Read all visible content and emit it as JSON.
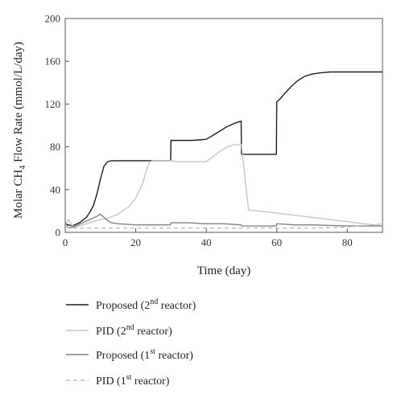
{
  "chart_data": {
    "type": "line",
    "xlabel": "Time (day)",
    "ylabel": {
      "main": "Molar CH",
      "sub": "4",
      "rest": " Flow Rate (mmol/L/day)"
    },
    "xlim": [
      0,
      90
    ],
    "ylim": [
      0,
      200
    ],
    "xticks": [
      0,
      20,
      40,
      60,
      80
    ],
    "yticks": [
      0,
      40,
      80,
      120,
      160,
      200
    ],
    "grid": false,
    "legend_placement": "below",
    "series": [
      {
        "name": {
          "pre": "Proposed (2",
          "sup": "nd",
          "post": " reactor)"
        },
        "color": "#1e1e1e",
        "dash": "none",
        "x": [
          0,
          2,
          4,
          6,
          7,
          8,
          9,
          10,
          11,
          12,
          13,
          15,
          20,
          25,
          29.9,
          30,
          32,
          36,
          40,
          42,
          44,
          46,
          48,
          49.9,
          50,
          52,
          55,
          59.9,
          60,
          61,
          62,
          64,
          66,
          68,
          70,
          72,
          75,
          80,
          85,
          90
        ],
        "y": [
          8,
          6,
          9,
          14,
          19,
          25,
          36,
          50,
          62,
          66,
          67,
          67,
          67,
          67,
          67,
          86,
          86,
          86,
          87,
          91,
          95,
          99,
          102,
          104,
          73,
          73,
          73,
          73,
          122,
          125,
          129,
          136,
          142,
          146,
          148,
          149,
          150,
          150,
          150,
          150
        ]
      },
      {
        "name": {
          "pre": "PID (2",
          "sup": "nd",
          "post": " reactor)"
        },
        "color": "#c6c6c6",
        "dash": "none",
        "x": [
          0,
          1,
          2,
          3,
          5,
          8,
          10,
          12,
          15,
          18,
          20,
          22,
          23,
          24,
          25,
          30,
          32,
          35,
          40,
          42,
          44,
          46,
          48,
          50,
          51,
          52,
          55,
          60,
          65,
          70,
          75,
          80,
          85,
          90
        ],
        "y": [
          8,
          12,
          6,
          5,
          7,
          10,
          12,
          13,
          17,
          24,
          32,
          46,
          58,
          66,
          67,
          67,
          66,
          66,
          66,
          71,
          76,
          80,
          82,
          82,
          50,
          21,
          20,
          18,
          16,
          14,
          12,
          10,
          8,
          6
        ]
      },
      {
        "name": {
          "pre": "Proposed (1",
          "sup": "st",
          "post": " reactor)"
        },
        "color": "#808080",
        "dash": "none",
        "x": [
          0,
          1,
          3,
          5,
          7,
          9,
          10,
          11,
          12,
          13,
          15,
          20,
          25,
          29.9,
          30,
          35,
          40,
          45,
          49.9,
          50,
          55,
          59.9,
          60,
          65,
          70,
          80,
          90
        ],
        "y": [
          9,
          4,
          6,
          9,
          12,
          15,
          17,
          14,
          11,
          9,
          8,
          7,
          7,
          7,
          9,
          9,
          8,
          8,
          7,
          6,
          6,
          6,
          8,
          7,
          7,
          6,
          6
        ]
      },
      {
        "name": {
          "pre": "PID (1",
          "sup": "st",
          "post": " reactor)"
        },
        "color": "#bdbdbd",
        "dash": "5,4",
        "x": [
          0,
          2,
          5,
          10,
          20,
          30,
          40,
          50,
          60,
          70,
          80,
          90
        ],
        "y": [
          5,
          4,
          4,
          4,
          4,
          4,
          4,
          4,
          4,
          4,
          5,
          8
        ]
      }
    ]
  }
}
